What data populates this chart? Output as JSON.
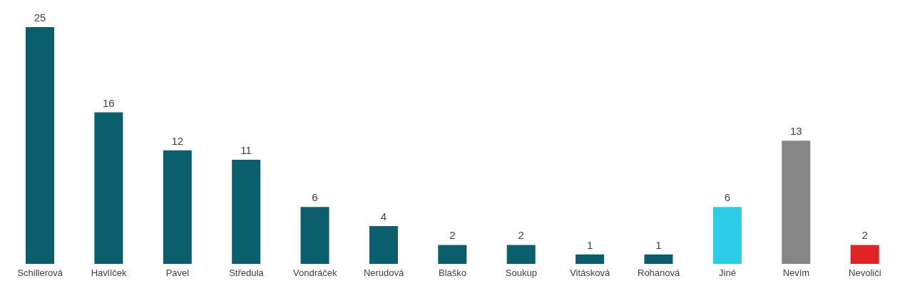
{
  "chart_data": {
    "type": "bar",
    "categories": [
      "Schillerová",
      "Havlíček",
      "Pavel",
      "Středula",
      "Vondráček",
      "Nerudová",
      "Blaško",
      "Soukup",
      "Vitásková",
      "Rohanová",
      "Jiné",
      "Nevím",
      "Nevoliči"
    ],
    "values": [
      25,
      16,
      12,
      11,
      6,
      4,
      2,
      2,
      1,
      1,
      6,
      13,
      2
    ],
    "colors": [
      "#0b5e6b",
      "#0b5e6b",
      "#0b5e6b",
      "#0b5e6b",
      "#0b5e6b",
      "#0b5e6b",
      "#0b5e6b",
      "#0b5e6b",
      "#0b5e6b",
      "#0b5e6b",
      "#2ccbe6",
      "#868686",
      "#e02424"
    ],
    "data_labels": true
  }
}
